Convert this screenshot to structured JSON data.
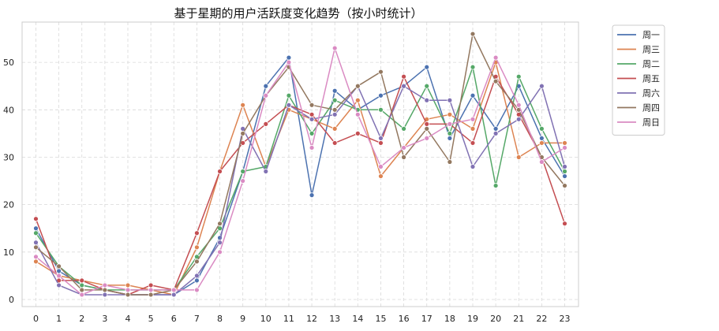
{
  "chart_data": {
    "type": "line",
    "title": "基于星期的用户活跃度变化趋势（按小时统计）",
    "xlabel": "",
    "ylabel": "",
    "x": [
      0,
      1,
      2,
      3,
      4,
      5,
      6,
      7,
      8,
      9,
      10,
      11,
      12,
      13,
      14,
      15,
      16,
      17,
      18,
      19,
      20,
      21,
      22,
      23
    ],
    "xticks": [
      "0",
      "1",
      "2",
      "3",
      "4",
      "5",
      "6",
      "7",
      "8",
      "9",
      "10",
      "11",
      "12",
      "13",
      "14",
      "15",
      "16",
      "17",
      "18",
      "19",
      "20",
      "21",
      "22",
      "23"
    ],
    "yticks": [
      "0",
      "10",
      "20",
      "30",
      "40",
      "50"
    ],
    "xlim": [
      -0.6,
      23.6
    ],
    "ylim": [
      -1.5,
      58.5
    ],
    "grid": true,
    "legend_position": "outside-top-right",
    "series": [
      {
        "name": "周一",
        "color": "#4c72b0",
        "values": [
          15,
          6,
          3,
          2,
          1,
          1,
          1,
          4,
          13,
          27,
          45,
          51,
          22,
          44,
          40,
          43,
          45,
          49,
          34,
          43,
          36,
          45,
          34,
          26
        ]
      },
      {
        "name": "周三",
        "color": "#dd8452",
        "values": [
          8,
          5,
          4,
          3,
          3,
          2,
          1,
          11,
          27,
          41,
          28,
          40,
          38,
          36,
          42,
          26,
          32,
          38,
          39,
          36,
          50,
          30,
          33,
          33
        ]
      },
      {
        "name": "周二",
        "color": "#55a868",
        "values": [
          14,
          7,
          3,
          2,
          2,
          2,
          2,
          9,
          15,
          27,
          28,
          43,
          35,
          42,
          40,
          40,
          36,
          45,
          35,
          49,
          24,
          47,
          36,
          27
        ]
      },
      {
        "name": "周五",
        "color": "#c44e52",
        "values": [
          17,
          4,
          4,
          2,
          1,
          3,
          2,
          14,
          27,
          33,
          37,
          41,
          39,
          33,
          35,
          33,
          47,
          37,
          37,
          33,
          47,
          39,
          30,
          16
        ]
      },
      {
        "name": "周六",
        "color": "#8172b3",
        "values": [
          12,
          3,
          1,
          1,
          1,
          1,
          1,
          5,
          12,
          36,
          27,
          41,
          38,
          39,
          45,
          34,
          45,
          42,
          42,
          28,
          35,
          38,
          45,
          28
        ]
      },
      {
        "name": "周四",
        "color": "#937860",
        "values": [
          11,
          7,
          2,
          2,
          1,
          1,
          2,
          8,
          16,
          35,
          43,
          49,
          41,
          40,
          45,
          48,
          30,
          36,
          29,
          56,
          46,
          40,
          30,
          24
        ]
      },
      {
        "name": "周日",
        "color": "#da8bc3",
        "values": [
          9,
          5,
          1,
          3,
          2,
          2,
          2,
          2,
          10,
          25,
          43,
          50,
          32,
          53,
          39,
          28,
          32,
          34,
          37,
          38,
          51,
          41,
          29,
          32
        ]
      }
    ]
  }
}
